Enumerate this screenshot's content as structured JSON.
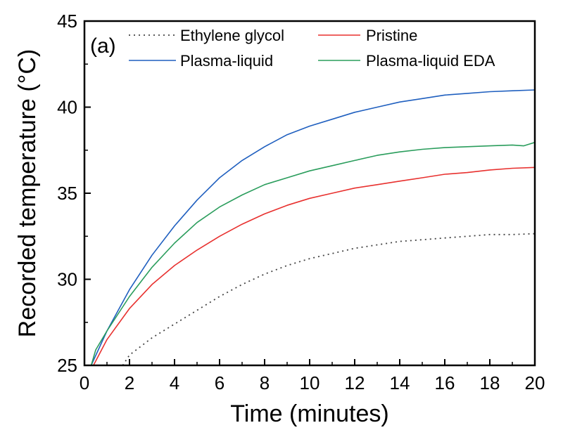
{
  "chart_data": {
    "type": "line",
    "panel_label": "(a)",
    "xlabel": "Time (minutes)",
    "ylabel": "Recorded temperature (°C)",
    "xlim": [
      0,
      20
    ],
    "ylim": [
      25,
      45
    ],
    "xticks": [
      0,
      2,
      4,
      6,
      8,
      10,
      12,
      14,
      16,
      18,
      20
    ],
    "yticks": [
      25,
      30,
      35,
      40,
      45
    ],
    "xtick_labels": [
      "0",
      "2",
      "4",
      "6",
      "8",
      "10",
      "12",
      "14",
      "16",
      "18",
      "20"
    ],
    "ytick_labels": [
      "25",
      "30",
      "35",
      "40",
      "45"
    ],
    "grid": false,
    "legend_position": "top",
    "series": [
      {
        "name": "Ethylene glycol",
        "color": "#444444",
        "style": "dotted",
        "points": [
          [
            1.7,
            25.0
          ],
          [
            2,
            25.6
          ],
          [
            3,
            26.6
          ],
          [
            4,
            27.4
          ],
          [
            5,
            28.2
          ],
          [
            6,
            29.0
          ],
          [
            7,
            29.7
          ],
          [
            8,
            30.3
          ],
          [
            9,
            30.8
          ],
          [
            10,
            31.2
          ],
          [
            11,
            31.5
          ],
          [
            12,
            31.8
          ],
          [
            13,
            32.0
          ],
          [
            14,
            32.2
          ],
          [
            15,
            32.3
          ],
          [
            16,
            32.4
          ],
          [
            17,
            32.5
          ],
          [
            18,
            32.6
          ],
          [
            19,
            32.6
          ],
          [
            20,
            32.65
          ]
        ]
      },
      {
        "name": "Pristine",
        "color": "#e8312f",
        "style": "solid",
        "points": [
          [
            0.4,
            25.0
          ],
          [
            1,
            26.5
          ],
          [
            2,
            28.3
          ],
          [
            3,
            29.7
          ],
          [
            4,
            30.8
          ],
          [
            5,
            31.7
          ],
          [
            6,
            32.5
          ],
          [
            7,
            33.2
          ],
          [
            8,
            33.8
          ],
          [
            9,
            34.3
          ],
          [
            10,
            34.7
          ],
          [
            11,
            35.0
          ],
          [
            12,
            35.3
          ],
          [
            13,
            35.5
          ],
          [
            14,
            35.7
          ],
          [
            15,
            35.9
          ],
          [
            16,
            36.1
          ],
          [
            17,
            36.2
          ],
          [
            18,
            36.35
          ],
          [
            19,
            36.45
          ],
          [
            20,
            36.5
          ]
        ]
      },
      {
        "name": "Plasma-liquid",
        "color": "#1f5fbf",
        "style": "solid",
        "points": [
          [
            0.3,
            25.0
          ],
          [
            1,
            27.0
          ],
          [
            2,
            29.4
          ],
          [
            3,
            31.4
          ],
          [
            4,
            33.1
          ],
          [
            5,
            34.6
          ],
          [
            6,
            35.9
          ],
          [
            7,
            36.9
          ],
          [
            8,
            37.7
          ],
          [
            9,
            38.4
          ],
          [
            10,
            38.9
          ],
          [
            11,
            39.3
          ],
          [
            12,
            39.7
          ],
          [
            13,
            40.0
          ],
          [
            14,
            40.3
          ],
          [
            15,
            40.5
          ],
          [
            16,
            40.7
          ],
          [
            17,
            40.8
          ],
          [
            18,
            40.9
          ],
          [
            19,
            40.95
          ],
          [
            20,
            41.0
          ]
        ]
      },
      {
        "name": "Plasma-liquid EDA",
        "color": "#2a9d5c",
        "style": "solid",
        "points": [
          [
            0.3,
            25.0
          ],
          [
            0.5,
            25.9
          ],
          [
            1,
            27.0
          ],
          [
            2,
            29.0
          ],
          [
            3,
            30.7
          ],
          [
            4,
            32.1
          ],
          [
            5,
            33.3
          ],
          [
            6,
            34.2
          ],
          [
            7,
            34.9
          ],
          [
            8,
            35.5
          ],
          [
            9,
            35.9
          ],
          [
            10,
            36.3
          ],
          [
            11,
            36.6
          ],
          [
            12,
            36.9
          ],
          [
            13,
            37.2
          ],
          [
            14,
            37.4
          ],
          [
            15,
            37.55
          ],
          [
            16,
            37.65
          ],
          [
            17,
            37.7
          ],
          [
            18,
            37.75
          ],
          [
            19,
            37.8
          ],
          [
            19.5,
            37.75
          ],
          [
            20,
            37.95
          ]
        ]
      }
    ]
  }
}
